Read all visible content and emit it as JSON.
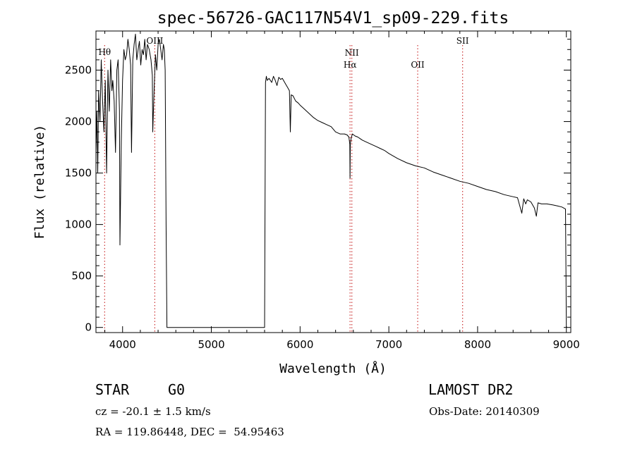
{
  "chart_data": {
    "type": "line",
    "title": "spec-56726-GAC117N54V1_sp09-229.fits",
    "xlabel": "Wavelength (Å)",
    "ylabel": "Flux (relative)",
    "xlim": [
      3700,
      9050
    ],
    "ylim": [
      -50,
      2880
    ],
    "xticks": [
      4000,
      5000,
      6000,
      7000,
      8000,
      9000
    ],
    "yticks": [
      0,
      500,
      1000,
      1500,
      2000,
      2500
    ],
    "grid": false,
    "line_color": "#000000",
    "marker_color": "#cc3333",
    "series": [
      {
        "x": [
          3700,
          3710,
          3720,
          3730,
          3745,
          3760,
          3775,
          3790,
          3805,
          3820,
          3835,
          3850,
          3865,
          3880,
          3890,
          3905,
          3920,
          3935,
          3950,
          3965,
          3970,
          3985,
          4000,
          4015,
          4030,
          4045,
          4060,
          4075,
          4090,
          4101,
          4115,
          4130,
          4145,
          4160,
          4175,
          4190,
          4205,
          4220,
          4235,
          4250,
          4265,
          4280,
          4300,
          4320,
          4335,
          4340,
          4355,
          4370,
          4385,
          4400,
          4415,
          4430,
          4445,
          4460,
          4470,
          4480,
          4490,
          4500,
          4510,
          4520,
          4540,
          5600,
          5610,
          5620,
          5630,
          5650,
          5680,
          5700,
          5720,
          5740,
          5760,
          5780,
          5800,
          5820,
          5840,
          5860,
          5880,
          5890,
          5900,
          5920,
          5950,
          5980,
          6000,
          6050,
          6100,
          6150,
          6200,
          6250,
          6300,
          6350,
          6400,
          6450,
          6500,
          6530,
          6550,
          6560,
          6563,
          6566,
          6575,
          6590,
          6620,
          6650,
          6700,
          6750,
          6800,
          6850,
          6900,
          6950,
          7000,
          7100,
          7200,
          7300,
          7400,
          7500,
          7600,
          7700,
          7800,
          7900,
          8000,
          8100,
          8200,
          8300,
          8400,
          8450,
          8498,
          8520,
          8542,
          8560,
          8600,
          8640,
          8662,
          8680,
          8720,
          8780,
          8850,
          8900,
          8950,
          8970,
          8990,
          8995,
          9000
        ],
        "values": [
          1700,
          2100,
          1500,
          2300,
          2000,
          2600,
          2200,
          1900,
          2400,
          1500,
          2500,
          2100,
          2600,
          2300,
          2400,
          2200,
          1700,
          2500,
          2600,
          2100,
          800,
          1800,
          2400,
          2700,
          2600,
          2650,
          2800,
          2700,
          2550,
          1700,
          2600,
          2750,
          2850,
          2600,
          2700,
          2780,
          2550,
          2700,
          2650,
          2800,
          2600,
          2750,
          2700,
          2600,
          2450,
          1900,
          2300,
          2650,
          2500,
          2750,
          2800,
          2700,
          2600,
          2750,
          2700,
          2500,
          1000,
          0,
          0,
          0,
          0,
          0,
          2380,
          2440,
          2400,
          2420,
          2380,
          2440,
          2400,
          2350,
          2430,
          2410,
          2420,
          2390,
          2360,
          2330,
          2300,
          1900,
          2260,
          2250,
          2200,
          2180,
          2160,
          2120,
          2080,
          2040,
          2010,
          1990,
          1970,
          1950,
          1900,
          1880,
          1880,
          1870,
          1850,
          1780,
          1450,
          1780,
          1840,
          1880,
          1860,
          1850,
          1820,
          1800,
          1780,
          1760,
          1740,
          1720,
          1690,
          1640,
          1600,
          1570,
          1550,
          1510,
          1480,
          1450,
          1420,
          1400,
          1370,
          1340,
          1320,
          1290,
          1270,
          1260,
          1110,
          1250,
          1200,
          1240,
          1220,
          1160,
          1080,
          1210,
          1200,
          1200,
          1190,
          1180,
          1170,
          1160,
          1150,
          600,
          0
        ]
      }
    ],
    "lines": [
      {
        "label": "Hθ",
        "x": 3798
      },
      {
        "label": "OIII",
        "x": 4363
      },
      {
        "label": "NII",
        "x": 6583
      },
      {
        "label": "Hα",
        "x": 6563
      },
      {
        "label": "OII",
        "x": 7325
      },
      {
        "label": "SII",
        "x": 7831
      }
    ]
  },
  "info": {
    "class": "STAR",
    "subclass": "G0",
    "survey": "LAMOST DR2",
    "cz": "cz = -20.1 ± 1.5 km/s",
    "obs_date": "Obs-Date: 20140309",
    "coords": "RA = 119.86448, DEC =  54.95463"
  }
}
